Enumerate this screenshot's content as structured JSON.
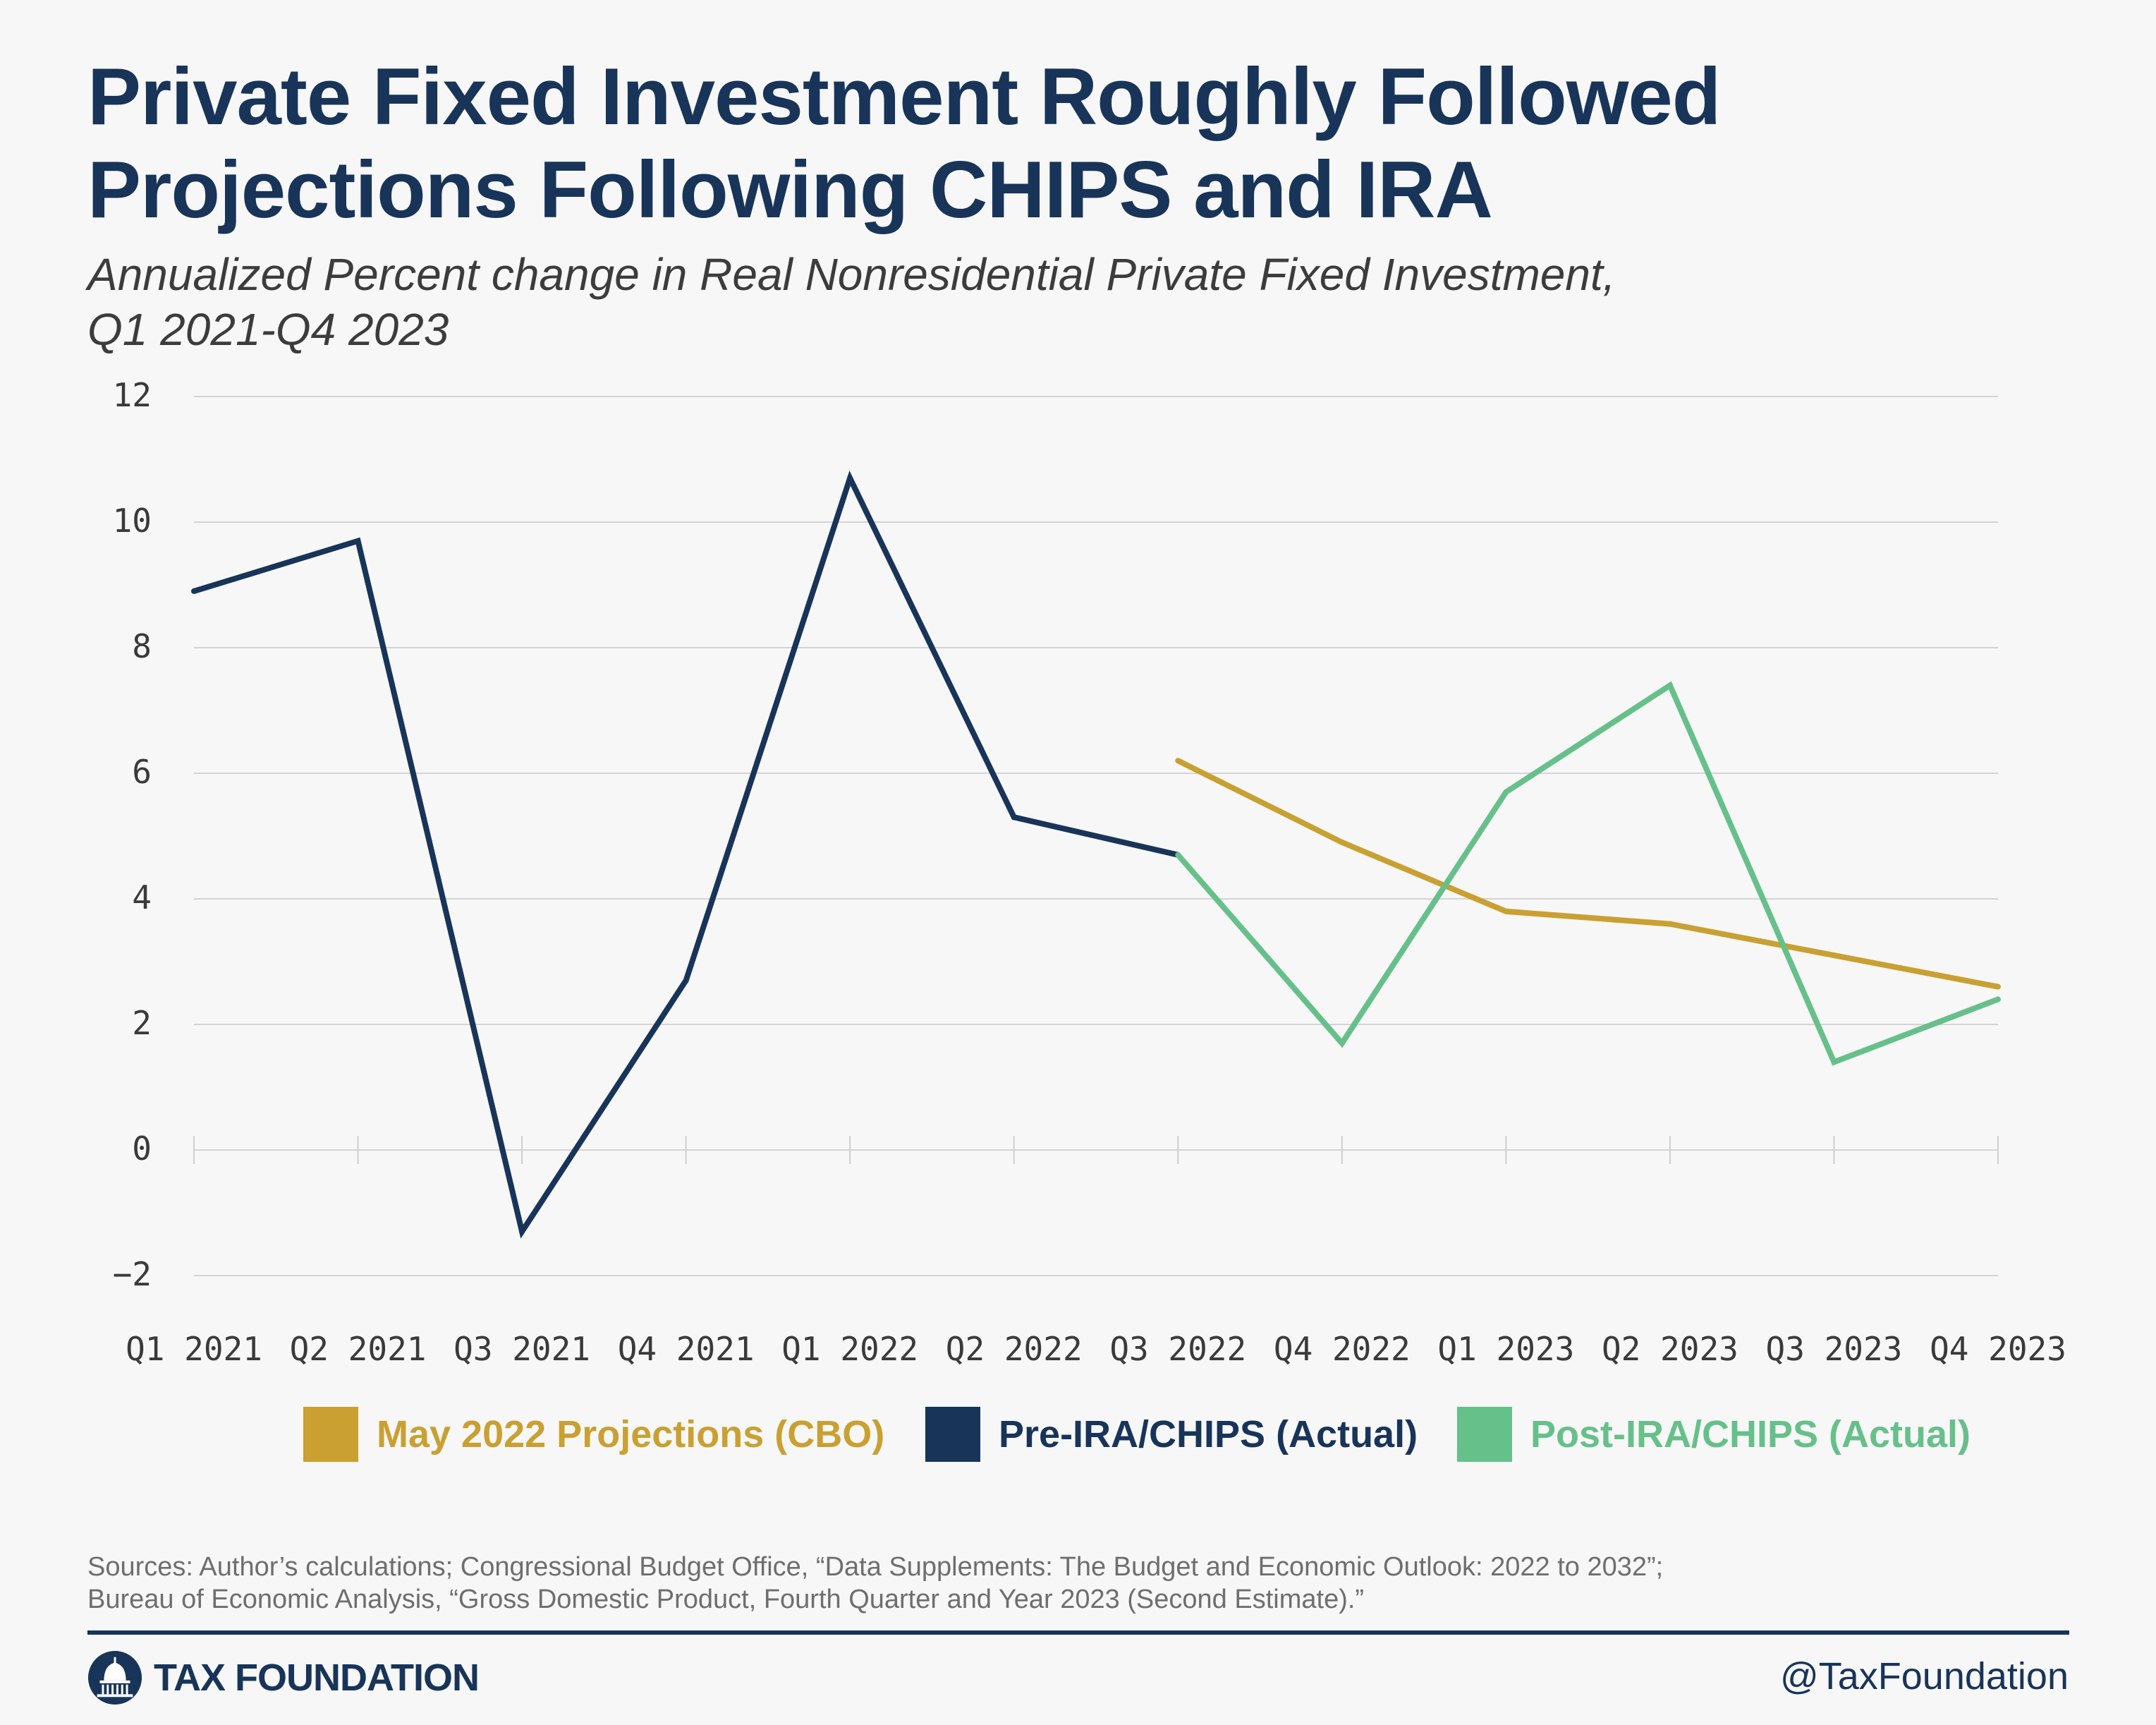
{
  "title_line1": "Private Fixed Investment Roughly Followed",
  "title_line2": "Projections Following CHIPS and IRA",
  "subtitle_line1": "Annualized Percent change in Real Nonresidential Private Fixed Investment,",
  "subtitle_line2": "Q1 2021-Q4 2023",
  "chart_data": {
    "type": "line",
    "title": "Private Fixed Investment Roughly Followed Projections Following CHIPS and IRA",
    "subtitle": "Annualized Percent change in Real Nonresidential Private Fixed Investment, Q1 2021-Q4 2023",
    "xlabel": "",
    "ylabel": "",
    "ylim": [
      -2,
      12
    ],
    "yticks": [
      12,
      10,
      8,
      6,
      4,
      2,
      0,
      -2
    ],
    "x": [
      "Q1 2021",
      "Q2 2021",
      "Q3 2021",
      "Q4 2021",
      "Q1 2022",
      "Q2 2022",
      "Q3 2022",
      "Q4 2022",
      "Q1 2023",
      "Q2 2023",
      "Q3 2023",
      "Q4 2023"
    ],
    "grid": true,
    "legend_position": "bottom",
    "series": [
      {
        "name": "May 2022 Projections (CBO)",
        "color": "#c9a031",
        "values": [
          null,
          null,
          null,
          null,
          null,
          null,
          6.2,
          4.9,
          3.8,
          3.6,
          3.1,
          2.6
        ]
      },
      {
        "name": "Pre-IRA/CHIPS (Actual)",
        "color": "#183459",
        "values": [
          8.9,
          9.7,
          -1.3,
          2.7,
          10.7,
          5.3,
          4.7,
          null,
          null,
          null,
          null,
          null
        ]
      },
      {
        "name": "Post-IRA/CHIPS (Actual)",
        "color": "#66c08a",
        "values": [
          null,
          null,
          null,
          null,
          null,
          null,
          4.7,
          1.7,
          5.7,
          7.4,
          1.4,
          2.4
        ]
      }
    ]
  },
  "source_line1": "Sources: Author’s calculations; Congressional Budget Office, “Data Supplements: The Budget and Economic Outlook: 2022 to 2032”;",
  "source_line2": "Bureau of Economic Analysis, “Gross Domestic Product, Fourth Quarter and Year 2023 (Second Estimate).”",
  "brand": "TAX FOUNDATION",
  "logo_icon": "capitol-dome-icon",
  "handle": "@TaxFoundation"
}
